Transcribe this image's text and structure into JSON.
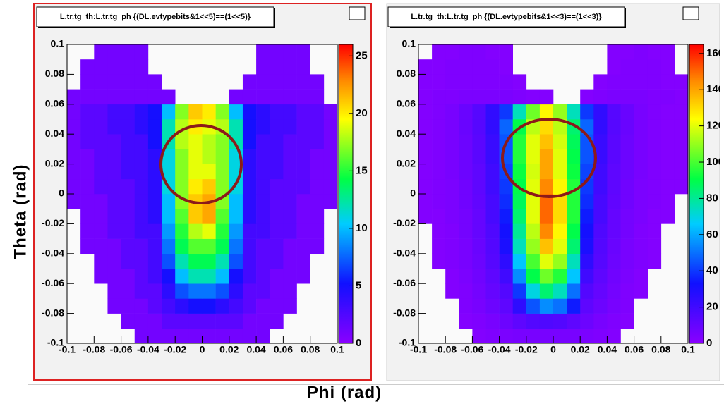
{
  "chart_data": [
    {
      "type": "heatmap",
      "title": "L.tr.tg_th:L.tr.tg_ph {(DL.evtypebits&1<<5)==(1<<5)}",
      "xbins": [
        -0.1,
        -0.09,
        -0.08,
        -0.07,
        -0.06,
        -0.05,
        -0.04,
        -0.03,
        -0.02,
        -0.01,
        0,
        0.01,
        0.02,
        0.03,
        0.04,
        0.05,
        0.06,
        0.07,
        0.08,
        0.09,
        0.1
      ],
      "ybins": [
        -0.1,
        -0.09,
        -0.08,
        -0.07,
        -0.06,
        -0.05,
        -0.04,
        -0.03,
        -0.02,
        -0.01,
        0,
        0.01,
        0.02,
        0.03,
        0.04,
        0.05,
        0.06,
        0.07,
        0.08,
        0.09,
        0.1
      ],
      "z": [
        [
          0,
          0,
          0,
          0,
          0,
          1,
          1,
          1,
          1,
          1,
          1,
          1,
          1,
          1,
          1,
          0,
          0,
          0,
          0,
          0
        ],
        [
          0,
          0,
          0,
          0,
          1,
          1,
          1,
          2,
          2,
          2,
          2,
          2,
          2,
          1,
          1,
          1,
          0,
          0,
          0,
          0
        ],
        [
          0,
          0,
          0,
          1,
          1,
          1,
          2,
          3,
          4,
          5,
          5,
          4,
          3,
          2,
          1,
          1,
          1,
          0,
          0,
          0
        ],
        [
          0,
          0,
          0,
          1,
          1,
          2,
          2,
          4,
          7,
          8,
          8,
          7,
          4,
          2,
          2,
          1,
          1,
          0,
          0,
          0
        ],
        [
          0,
          0,
          1,
          1,
          1,
          2,
          3,
          5,
          10,
          12,
          12,
          10,
          5,
          3,
          2,
          1,
          1,
          1,
          0,
          0
        ],
        [
          0,
          0,
          1,
          1,
          2,
          2,
          3,
          7,
          12,
          14,
          14,
          12,
          7,
          3,
          2,
          2,
          1,
          1,
          0,
          0
        ],
        [
          0,
          1,
          1,
          1,
          2,
          2,
          3,
          8,
          14,
          16,
          16,
          14,
          8,
          3,
          2,
          2,
          1,
          1,
          1,
          0
        ],
        [
          0,
          1,
          1,
          2,
          2,
          3,
          3,
          9,
          15,
          18,
          19,
          15,
          9,
          3,
          3,
          2,
          2,
          1,
          1,
          0
        ],
        [
          0,
          1,
          1,
          2,
          2,
          3,
          4,
          10,
          16,
          21,
          22,
          16,
          10,
          4,
          3,
          2,
          2,
          1,
          1,
          0
        ],
        [
          1,
          1,
          1,
          2,
          2,
          3,
          4,
          10,
          17,
          21,
          22,
          17,
          10,
          4,
          3,
          2,
          2,
          1,
          1,
          1
        ],
        [
          1,
          1,
          2,
          2,
          2,
          3,
          4,
          11,
          17,
          20,
          21,
          17,
          11,
          4,
          3,
          2,
          2,
          2,
          1,
          1
        ],
        [
          1,
          1,
          2,
          2,
          3,
          3,
          4,
          11,
          17,
          19,
          19,
          17,
          11,
          4,
          3,
          3,
          2,
          2,
          1,
          1
        ],
        [
          1,
          1,
          2,
          2,
          3,
          3,
          4,
          11,
          17,
          19,
          18,
          17,
          11,
          4,
          3,
          3,
          2,
          2,
          1,
          1
        ],
        [
          1,
          2,
          2,
          2,
          3,
          3,
          5,
          12,
          18,
          19,
          18,
          17,
          12,
          5,
          3,
          3,
          2,
          2,
          2,
          1
        ],
        [
          1,
          2,
          2,
          3,
          3,
          4,
          5,
          12,
          18,
          20,
          19,
          18,
          12,
          5,
          4,
          3,
          3,
          2,
          2,
          1
        ],
        [
          1,
          2,
          2,
          3,
          3,
          4,
          5,
          10,
          17,
          21,
          20,
          17,
          10,
          5,
          4,
          3,
          3,
          2,
          2,
          1
        ],
        [
          1,
          1,
          1,
          1,
          1,
          1,
          1,
          1,
          0,
          0,
          0,
          0,
          1,
          1,
          1,
          1,
          1,
          1,
          1,
          0
        ],
        [
          0,
          1,
          1,
          1,
          1,
          1,
          1,
          0,
          0,
          0,
          0,
          0,
          0,
          1,
          1,
          1,
          1,
          1,
          1,
          0
        ],
        [
          0,
          1,
          1,
          1,
          1,
          1,
          0,
          0,
          0,
          0,
          0,
          0,
          0,
          0,
          1,
          1,
          1,
          1,
          0,
          0
        ],
        [
          0,
          0,
          1,
          1,
          1,
          1,
          0,
          0,
          0,
          0,
          0,
          0,
          0,
          0,
          1,
          1,
          1,
          1,
          0,
          0
        ]
      ],
      "xlim": [
        -0.1,
        0.1
      ],
      "ylim": [
        -0.1,
        0.1
      ],
      "xticks": [
        -0.1,
        -0.08,
        -0.06,
        -0.04,
        -0.02,
        0,
        0.02,
        0.04,
        0.06,
        0.08,
        0.1
      ],
      "yticks": [
        -0.1,
        -0.08,
        -0.06,
        -0.04,
        -0.02,
        0,
        0.02,
        0.04,
        0.06,
        0.08,
        0.1
      ],
      "zlim": [
        0,
        26
      ],
      "zticks": [
        0,
        5,
        10,
        15,
        20,
        25
      ]
    },
    {
      "type": "heatmap",
      "title": "L.tr.tg_th:L.tr.tg_ph {(DL.evtypebits&1<<3)==(1<<3)}",
      "xbins": [
        -0.1,
        -0.09,
        -0.08,
        -0.07,
        -0.06,
        -0.05,
        -0.04,
        -0.03,
        -0.02,
        -0.01,
        0,
        0.01,
        0.02,
        0.03,
        0.04,
        0.05,
        0.06,
        0.07,
        0.08,
        0.09,
        0.1
      ],
      "ybins": [
        -0.1,
        -0.09,
        -0.08,
        -0.07,
        -0.06,
        -0.05,
        -0.04,
        -0.03,
        -0.02,
        -0.01,
        0,
        0.01,
        0.02,
        0.03,
        0.04,
        0.05,
        0.06,
        0.07,
        0.08,
        0.09,
        0.1
      ],
      "z": [
        [
          0,
          0,
          0,
          0,
          2,
          3,
          4,
          5,
          5,
          5,
          5,
          5,
          4,
          3,
          2,
          0,
          0,
          0,
          0,
          0
        ],
        [
          0,
          0,
          0,
          2,
          3,
          5,
          8,
          12,
          15,
          16,
          15,
          12,
          8,
          5,
          3,
          2,
          0,
          0,
          0,
          0
        ],
        [
          0,
          0,
          0,
          3,
          5,
          8,
          12,
          25,
          45,
          55,
          50,
          35,
          12,
          8,
          5,
          3,
          0,
          0,
          0,
          0
        ],
        [
          0,
          0,
          2,
          3,
          6,
          10,
          15,
          40,
          70,
          85,
          75,
          50,
          15,
          10,
          6,
          3,
          2,
          0,
          0,
          0
        ],
        [
          0,
          0,
          2,
          4,
          7,
          12,
          20,
          55,
          90,
          105,
          95,
          65,
          20,
          12,
          7,
          4,
          2,
          0,
          0,
          0
        ],
        [
          0,
          2,
          3,
          5,
          8,
          14,
          25,
          65,
          100,
          120,
          110,
          75,
          25,
          14,
          8,
          5,
          3,
          2,
          0,
          0
        ],
        [
          0,
          2,
          3,
          5,
          9,
          15,
          30,
          75,
          110,
          135,
          120,
          85,
          30,
          15,
          9,
          5,
          3,
          2,
          0,
          0
        ],
        [
          0,
          2,
          3,
          6,
          10,
          16,
          32,
          80,
          115,
          145,
          125,
          90,
          32,
          16,
          10,
          6,
          3,
          2,
          0,
          0
        ],
        [
          2,
          2,
          4,
          6,
          10,
          18,
          35,
          85,
          120,
          150,
          130,
          95,
          35,
          18,
          10,
          6,
          4,
          2,
          2,
          0
        ],
        [
          2,
          3,
          4,
          7,
          11,
          18,
          38,
          88,
          120,
          150,
          130,
          95,
          38,
          18,
          11,
          7,
          4,
          3,
          2,
          0
        ],
        [
          2,
          3,
          4,
          7,
          12,
          20,
          40,
          90,
          120,
          145,
          125,
          95,
          40,
          20,
          12,
          7,
          4,
          3,
          2,
          2
        ],
        [
          2,
          3,
          5,
          8,
          12,
          20,
          42,
          92,
          118,
          140,
          120,
          92,
          42,
          20,
          12,
          8,
          5,
          3,
          2,
          2
        ],
        [
          2,
          3,
          5,
          8,
          13,
          22,
          45,
          95,
          120,
          140,
          120,
          90,
          45,
          22,
          13,
          8,
          5,
          3,
          2,
          2
        ],
        [
          2,
          3,
          5,
          8,
          13,
          22,
          45,
          95,
          120,
          135,
          118,
          88,
          45,
          22,
          13,
          8,
          5,
          3,
          2,
          2
        ],
        [
          2,
          3,
          5,
          9,
          14,
          24,
          48,
          90,
          115,
          130,
          115,
          85,
          48,
          24,
          14,
          9,
          5,
          3,
          2,
          2
        ],
        [
          2,
          3,
          5,
          9,
          14,
          24,
          40,
          75,
          105,
          125,
          110,
          75,
          40,
          24,
          14,
          9,
          5,
          3,
          2,
          2
        ],
        [
          2,
          3,
          3,
          4,
          4,
          4,
          4,
          3,
          2,
          2,
          0,
          0,
          2,
          3,
          4,
          4,
          4,
          3,
          3,
          2
        ],
        [
          2,
          2,
          3,
          3,
          3,
          3,
          3,
          2,
          0,
          0,
          0,
          0,
          0,
          2,
          3,
          3,
          3,
          3,
          2,
          2
        ],
        [
          2,
          2,
          3,
          3,
          3,
          3,
          2,
          0,
          0,
          0,
          0,
          0,
          0,
          0,
          2,
          3,
          3,
          3,
          2,
          0
        ],
        [
          0,
          2,
          2,
          3,
          3,
          2,
          2,
          0,
          0,
          0,
          0,
          0,
          0,
          0,
          2,
          2,
          3,
          2,
          2,
          0
        ]
      ],
      "xlim": [
        -0.1,
        0.1
      ],
      "ylim": [
        -0.1,
        0.1
      ],
      "xticks": [
        -0.1,
        -0.08,
        -0.06,
        -0.04,
        -0.02,
        0,
        0.02,
        0.04,
        0.06,
        0.08,
        0.1
      ],
      "yticks": [
        -0.1,
        -0.08,
        -0.06,
        -0.04,
        -0.02,
        0,
        0.02,
        0.04,
        0.06,
        0.08,
        0.1
      ],
      "zlim": [
        0,
        165
      ],
      "zticks": [
        0,
        20,
        40,
        60,
        80,
        100,
        120,
        140,
        160
      ]
    }
  ],
  "canvas": {
    "x_label": "Phi (rad)",
    "y_label": "Theta (rad)"
  }
}
